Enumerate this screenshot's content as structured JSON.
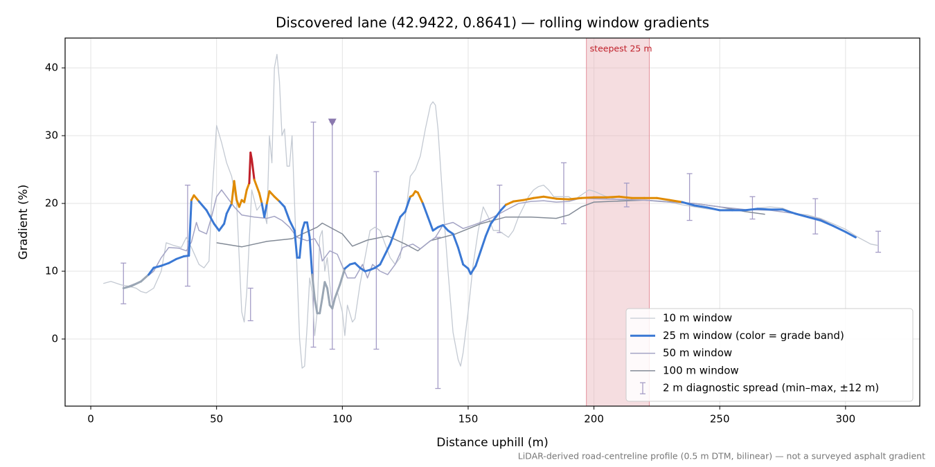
{
  "chart_data": {
    "type": "line",
    "title": "Discovered lane (42.9422, 0.8641) — rolling window gradients",
    "xlabel": "Distance uphill (m)",
    "ylabel": "Gradient (%)",
    "footnote": "LiDAR-derived road-centreline profile (0.5 m DTM, bilinear) — not a surveyed asphalt gradient",
    "xlim": [
      -10.2,
      329.5
    ],
    "ylim": [
      -9.9,
      44.4
    ],
    "xticks": [
      0,
      50,
      100,
      150,
      200,
      250,
      300
    ],
    "yticks": [
      0,
      10,
      20,
      30,
      40
    ],
    "grid": true,
    "legend_loc": "lower right",
    "span": {
      "x": [
        197,
        222
      ],
      "label": "steepest 25 m",
      "color": "#e8b4bb",
      "label_color": "#c0202a"
    },
    "grade_bands": {
      "thresholds": [
        10,
        20,
        25
      ],
      "colors": [
        "#9aa6b4",
        "#3a78d4",
        "#e08a00",
        "#c0202a"
      ]
    },
    "series": [
      {
        "name": "10 m window",
        "color": "#c3c9d2",
        "width": 1.3,
        "x": [
          5,
          8,
          12,
          15,
          18,
          20,
          22,
          25,
          28,
          30,
          33,
          36,
          38,
          40,
          43,
          45,
          47,
          48,
          50,
          52,
          54,
          56,
          58,
          59,
          60,
          61,
          62,
          64,
          66,
          68,
          70,
          71,
          72,
          73,
          74,
          75,
          76,
          77,
          78,
          79,
          80,
          81,
          82,
          83,
          84,
          85,
          86,
          87,
          88,
          89,
          90,
          91,
          92,
          93,
          94,
          95,
          96,
          97,
          98,
          100,
          101,
          102,
          104,
          105,
          107,
          109,
          111,
          113,
          115,
          117,
          119,
          121,
          123,
          125,
          127,
          129,
          131,
          133,
          135,
          136,
          137,
          138,
          140,
          142,
          144,
          146,
          147,
          148,
          150,
          152,
          154,
          156,
          158,
          160,
          162,
          164,
          166,
          168,
          170,
          172,
          174,
          176,
          178,
          180,
          182,
          184,
          186,
          188,
          190,
          192,
          194,
          196,
          198,
          200,
          205,
          210,
          215,
          220,
          225,
          230,
          235,
          240,
          245,
          250,
          255,
          260,
          265,
          270,
          275,
          280,
          285,
          290,
          295,
          300,
          305,
          310,
          313
        ],
        "values": [
          8.2,
          8.5,
          8.0,
          7.8,
          7.5,
          7.0,
          6.8,
          7.5,
          10,
          14.2,
          13.8,
          13.5,
          15.0,
          13.5,
          11.0,
          10.5,
          11.5,
          20,
          31.5,
          29,
          26,
          24,
          20,
          12,
          4,
          2.5,
          7,
          22,
          19,
          20,
          17,
          30,
          26,
          40,
          42,
          38,
          30,
          31,
          25.5,
          25.5,
          30,
          20,
          10,
          0,
          -4.3,
          -4,
          2,
          9,
          7,
          0.5,
          4,
          15,
          16,
          10,
          12,
          8,
          5,
          6,
          7,
          4,
          0.5,
          5,
          2.5,
          3,
          8,
          12,
          16,
          16.5,
          16,
          14,
          12,
          11,
          12,
          18,
          24,
          25,
          27,
          31,
          34.5,
          35,
          34.5,
          31,
          20,
          10,
          1,
          -3,
          -4,
          -2,
          4,
          11,
          16,
          19.5,
          18,
          16,
          16,
          15.5,
          15,
          16,
          18,
          19.5,
          21,
          22,
          22.5,
          22.7,
          22,
          21,
          21,
          21,
          21,
          20.5,
          21,
          21.5,
          22,
          21.8,
          21,
          20.5,
          20.5,
          20.5,
          20.3,
          20.2,
          19.8,
          19.5,
          19.2,
          19,
          19.2,
          19,
          19.3,
          19.5,
          19.3,
          18.5,
          18.3,
          17.8,
          17,
          16.2,
          15,
          14,
          13.8
        ]
      },
      {
        "name": "25 m window (color = grade band)",
        "color": "#3a78d4",
        "width": 3,
        "band_colored": true,
        "x": [
          13,
          16,
          20,
          23,
          25,
          28,
          31,
          34,
          37,
          39,
          40,
          41,
          43,
          46,
          49,
          51,
          53,
          54,
          56,
          57,
          58,
          59,
          60,
          61,
          62,
          63,
          63.5,
          64,
          65,
          67,
          68,
          69,
          70,
          71,
          73,
          75,
          77,
          79,
          81,
          82,
          83,
          84,
          85,
          86,
          87,
          88,
          89,
          90,
          91,
          92,
          93,
          94,
          95,
          96,
          97,
          99,
          101,
          103,
          105,
          107,
          109,
          111,
          113,
          115,
          117,
          119,
          121,
          123,
          125,
          127,
          128,
          129,
          130,
          132,
          134,
          136,
          138,
          140,
          142,
          144,
          146,
          148,
          150,
          151,
          153,
          155,
          157,
          159,
          161,
          163,
          165,
          168,
          172,
          176,
          180,
          185,
          190,
          195,
          200,
          205,
          210,
          215,
          220,
          225,
          230,
          235,
          240,
          245,
          250,
          255,
          260,
          265,
          270,
          275,
          280,
          285,
          290,
          295,
          300,
          304
        ],
        "values": [
          7.5,
          7.8,
          8.5,
          9.5,
          10.5,
          10.8,
          11.2,
          11.8,
          12.2,
          12.3,
          20.5,
          21.2,
          20.3,
          19,
          17,
          16,
          17,
          18.5,
          20,
          23.3,
          20.5,
          19.5,
          20.5,
          20.2,
          22,
          23,
          27.5,
          26.5,
          23.5,
          21.5,
          20,
          18,
          20,
          21.8,
          21,
          20.3,
          19.5,
          17.5,
          16,
          12,
          12,
          16,
          17.2,
          17.2,
          15,
          9.5,
          6,
          3.8,
          3.8,
          6,
          8.4,
          7.5,
          5,
          4.5,
          6,
          8,
          10.4,
          11,
          11.2,
          10.5,
          10,
          10.2,
          10.5,
          11,
          12.5,
          14,
          16,
          18,
          18.8,
          21,
          21.2,
          21.8,
          21.6,
          20,
          18,
          16,
          16.5,
          16.8,
          16,
          15.5,
          13.5,
          11,
          10.4,
          9.6,
          10.8,
          13,
          15.2,
          17,
          18,
          19,
          19.8,
          20.3,
          20.5,
          20.8,
          21,
          20.7,
          20.6,
          20.8,
          20.9,
          20.9,
          21,
          20.8,
          20.8,
          20.8,
          20.5,
          20.2,
          19.7,
          19.4,
          19,
          19,
          19,
          19.2,
          19.1,
          19.1,
          18.5,
          18,
          17.5,
          16.7,
          15.8,
          15
        ]
      },
      {
        "name": "50 m window",
        "color": "#a3a3c4",
        "width": 1.5,
        "x": [
          13,
          20,
          25,
          28,
          31,
          35,
          38,
          40,
          42,
          43,
          46,
          48,
          50,
          52,
          54,
          57,
          60,
          65,
          70,
          73,
          76,
          79,
          82,
          86,
          89,
          91,
          92,
          95,
          98,
          102,
          105,
          108,
          110,
          112,
          115,
          118,
          121,
          124,
          128,
          131,
          134,
          137,
          140,
          144,
          148,
          152,
          155,
          160,
          165,
          170,
          175,
          180,
          185,
          190,
          195,
          200,
          210,
          220,
          230,
          240,
          250,
          260,
          270,
          280,
          290,
          300,
          304
        ],
        "values": [
          7.5,
          8.5,
          10,
          12,
          13.5,
          13.4,
          13,
          14.3,
          17.2,
          16,
          15.5,
          18,
          21,
          22,
          21,
          19.5,
          18.3,
          18,
          17.8,
          18.1,
          17.5,
          16.5,
          15,
          14.5,
          14.8,
          13.5,
          11.5,
          13,
          12.5,
          9,
          9,
          11,
          9,
          11,
          10,
          9.5,
          11,
          13.5,
          14,
          13.3,
          14.2,
          15,
          16.8,
          17.2,
          16.3,
          16.8,
          17.2,
          18,
          19,
          20,
          20.3,
          20.4,
          20.2,
          20.3,
          20.8,
          20.7,
          20.6,
          20.5,
          20.2,
          20,
          19.5,
          19.1,
          19,
          18.5,
          17.7,
          15.8,
          15
        ]
      },
      {
        "name": "100 m window",
        "color": "#828a96",
        "width": 1.5,
        "x": [
          50,
          60,
          70,
          80,
          90,
          92,
          100,
          104,
          110,
          118,
          125,
          130,
          135,
          145,
          155,
          165,
          175,
          185,
          190,
          195,
          200,
          220,
          240,
          250,
          260,
          268
        ],
        "values": [
          14.2,
          13.6,
          14.4,
          14.8,
          16.5,
          17.1,
          15.5,
          13.7,
          14.6,
          15.2,
          14,
          13,
          14.5,
          15.5,
          17,
          18,
          18,
          17.8,
          18.3,
          19.5,
          20.2,
          20.5,
          20,
          19.5,
          18.8,
          18.4
        ]
      }
    ],
    "errorbars": {
      "name": "2 m diagnostic spread (min–max, ±12 m)",
      "color": "#a49cc6",
      "x": [
        13,
        38.5,
        63.5,
        88.5,
        96,
        113.5,
        138,
        162.5,
        188,
        213,
        238,
        263,
        288,
        313
      ],
      "low": [
        5.2,
        7.8,
        2.7,
        -1.2,
        -1.5,
        -1.5,
        -7.3,
        15.7,
        17,
        19.5,
        17.5,
        17.7,
        15.5,
        12.8
      ],
      "high": [
        11.2,
        22.7,
        7.5,
        32,
        32,
        24.7,
        15,
        22.7,
        26,
        23,
        24.4,
        21,
        20.7,
        15.9
      ]
    },
    "markers": {
      "x": [
        96
      ],
      "values": [
        32
      ],
      "color": "#8a78ae"
    }
  }
}
